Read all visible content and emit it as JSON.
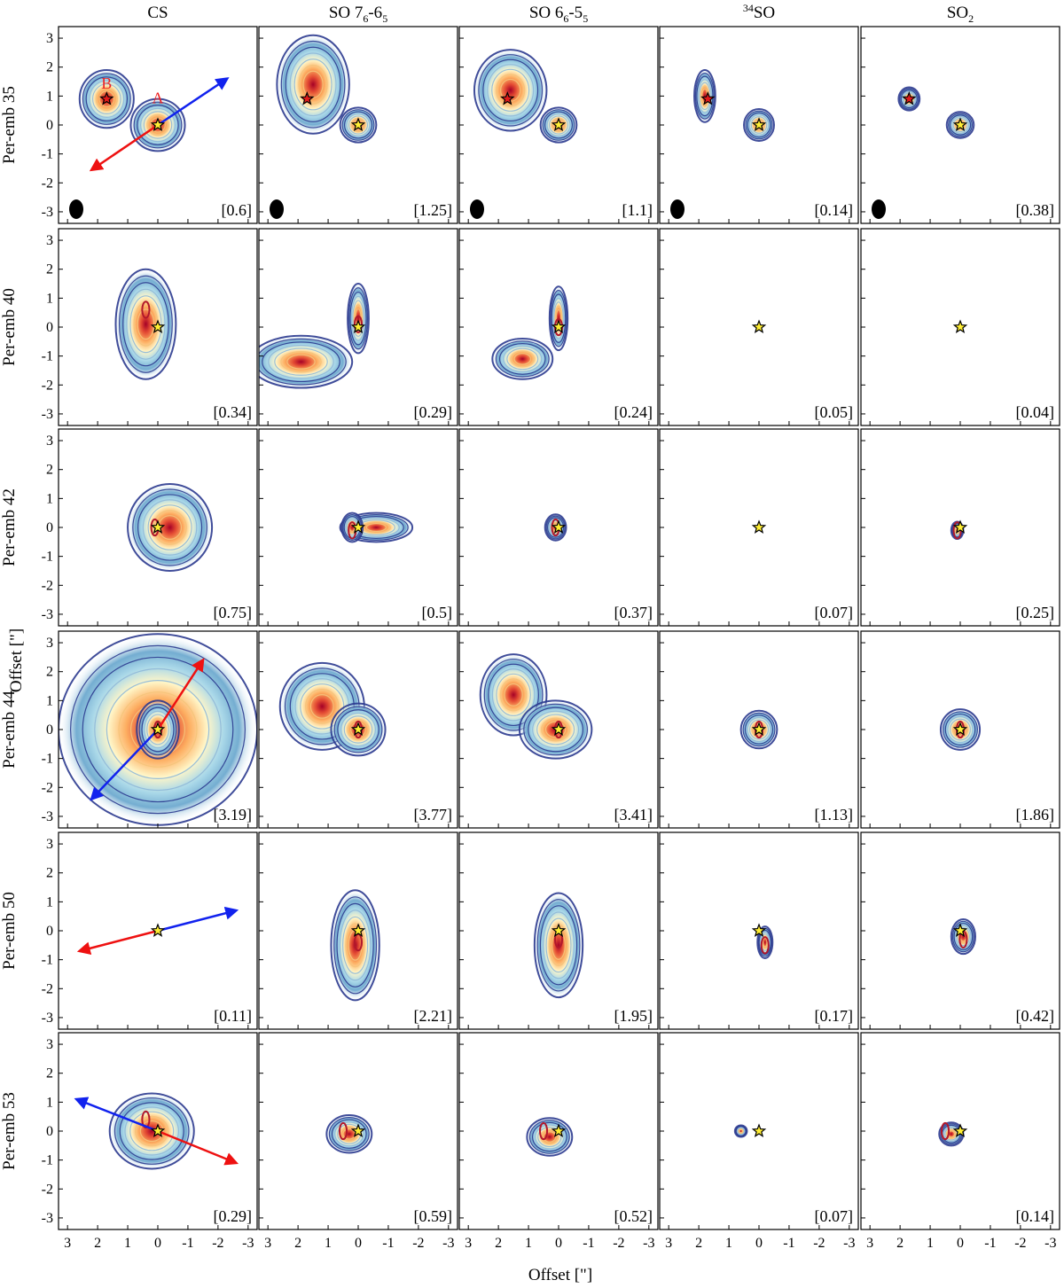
{
  "chart_data": {
    "type": "contour",
    "x_axis_label": "Offset [\"]",
    "y_axis_label": "Offset [\"]",
    "x_ticks": [
      "3",
      "2",
      "1",
      "0",
      "-1",
      "-2",
      "-3"
    ],
    "y_ticks": [
      "3",
      "2",
      "1",
      "0",
      "-1",
      "-2",
      "-3"
    ],
    "xlim": [
      3.3,
      -3.3
    ],
    "ylim": [
      -3.4,
      3.4
    ],
    "columns": [
      {
        "title": "CS"
      },
      {
        "title": "SO 7",
        "sub1": "6",
        "mid": "-6",
        "sub2": "5"
      },
      {
        "title": "SO 6",
        "sub1": "6",
        "mid": "-5",
        "sub2": "5"
      },
      {
        "sup": "34",
        "title": "SO"
      },
      {
        "title": "SO",
        "sub1": "2"
      }
    ],
    "colors": {
      "outer_contour": "#2b3a8f",
      "mid_contour": "#8fb8d8",
      "inner_contour": "#f5c47a",
      "peak_contour": "#b2182b",
      "red_arrow": "#ee1111",
      "blue_arrow": "#1122ee",
      "star_fill": "#ffee33",
      "star_fill_secondary": "#e01b1b",
      "beam": "#000000",
      "label_color": "#ee2222"
    },
    "rows": [
      {
        "label": "Per-emb 35",
        "panels": [
          {
            "peak": "[0.6]",
            "size": "large",
            "star2": [
              1.7,
              0.9
            ],
            "letters": [
              {
                "text": "B",
                "x": 1.7,
                "y": 1.25
              },
              {
                "text": "A",
                "x": 0.0,
                "y": 0.75
              }
            ],
            "arrows": [
              {
                "color": "blue",
                "from": [
                  0,
                  0
                ],
                "to": [
                  -2.3,
                  1.6
                ]
              },
              {
                "color": "red",
                "from": [
                  0,
                  0
                ],
                "to": [
                  2.2,
                  -1.55
                ]
              }
            ],
            "blobs": [
              {
                "x": 1.7,
                "y": 0.9,
                "rx": 0.9,
                "ry": 1.0
              },
              {
                "x": 0.0,
                "y": 0.0,
                "rx": 0.9,
                "ry": 0.9
              }
            ],
            "beam": true
          },
          {
            "peak": "[1.25]",
            "size": "large",
            "star2": [
              1.7,
              0.9
            ],
            "blobs": [
              {
                "x": 1.5,
                "y": 1.4,
                "rx": 1.2,
                "ry": 1.7
              },
              {
                "x": 0.0,
                "y": 0.0,
                "rx": 0.6,
                "ry": 0.6
              }
            ],
            "beam": true
          },
          {
            "peak": "[1.1]",
            "size": "large",
            "star2": [
              1.7,
              0.9
            ],
            "blobs": [
              {
                "x": 1.6,
                "y": 1.2,
                "rx": 1.2,
                "ry": 1.4
              },
              {
                "x": 0.0,
                "y": 0.0,
                "rx": 0.6,
                "ry": 0.6
              }
            ],
            "beam": true
          },
          {
            "peak": "[0.14]",
            "size": "small",
            "star2": [
              1.7,
              0.9
            ],
            "blobs": [
              {
                "x": 1.8,
                "y": 1.0,
                "rx": 0.35,
                "ry": 0.9
              },
              {
                "x": 0.0,
                "y": 0.0,
                "rx": 0.5,
                "ry": 0.55
              }
            ],
            "beam": true
          },
          {
            "peak": "[0.38]",
            "size": "small",
            "star2": [
              1.7,
              0.9
            ],
            "blobs": [
              {
                "x": 1.7,
                "y": 0.9,
                "rx": 0.35,
                "ry": 0.4
              },
              {
                "x": 0.0,
                "y": 0.0,
                "rx": 0.45,
                "ry": 0.45
              }
            ],
            "beam": true
          }
        ]
      },
      {
        "label": "Per-emb 40",
        "panels": [
          {
            "peak": "[0.34]",
            "blobs": [
              {
                "x": 0.4,
                "y": 0.1,
                "rx": 1.0,
                "ry": 1.9
              }
            ],
            "hot": [
              0.4,
              0.6
            ]
          },
          {
            "peak": "[0.29]",
            "blobs": [
              {
                "x": 1.9,
                "y": -1.2,
                "rx": 1.7,
                "ry": 0.9
              },
              {
                "x": 0.0,
                "y": 0.3,
                "rx": 0.35,
                "ry": 1.2
              }
            ],
            "hot": [
              0.0,
              0.1
            ]
          },
          {
            "peak": "[0.24]",
            "blobs": [
              {
                "x": 1.2,
                "y": -1.1,
                "rx": 1.0,
                "ry": 0.7
              },
              {
                "x": 0.0,
                "y": 0.3,
                "rx": 0.3,
                "ry": 1.1
              }
            ],
            "hot": [
              0.0,
              0.0
            ]
          },
          {
            "peak": "[0.05]",
            "blobs": []
          },
          {
            "peak": "[0.04]",
            "blobs": []
          }
        ]
      },
      {
        "label": "Per-emb 42",
        "panels": [
          {
            "peak": "[0.75]",
            "blobs": [
              {
                "x": -0.4,
                "y": 0.0,
                "rx": 1.4,
                "ry": 1.5
              }
            ],
            "hot": [
              0.1,
              0.0
            ]
          },
          {
            "peak": "[0.5]",
            "blobs": [
              {
                "x": -0.6,
                "y": 0.0,
                "rx": 1.2,
                "ry": 0.5
              },
              {
                "x": 0.2,
                "y": 0.0,
                "rx": 0.35,
                "ry": 0.5
              }
            ],
            "hot": [
              0.2,
              -0.1
            ]
          },
          {
            "peak": "[0.37]",
            "blobs": [
              {
                "x": 0.1,
                "y": 0.0,
                "rx": 0.35,
                "ry": 0.45
              }
            ],
            "hot": [
              0.1,
              0.0
            ]
          },
          {
            "peak": "[0.07]",
            "blobs": []
          },
          {
            "peak": "[0.25]",
            "blobs": [
              {
                "x": 0.1,
                "y": -0.1,
                "rx": 0.2,
                "ry": 0.3
              }
            ],
            "hot": [
              0.1,
              -0.1
            ]
          }
        ]
      },
      {
        "label": "Per-emb 44",
        "panels": [
          {
            "peak": "[3.19]",
            "blobs": [
              {
                "x": 0.0,
                "y": 0.0,
                "rx": 3.3,
                "ry": 3.3
              },
              {
                "x": 0.0,
                "y": 0.0,
                "rx": 0.7,
                "ry": 1.0
              }
            ],
            "hot": [
              0.0,
              0.0
            ],
            "arrows": [
              {
                "color": "red",
                "from": [
                  0,
                  0
                ],
                "to": [
                  -1.5,
                  2.4
                ]
              },
              {
                "color": "blue",
                "from": [
                  0,
                  0
                ],
                "to": [
                  2.2,
                  -2.4
                ]
              }
            ]
          },
          {
            "peak": "[3.77]",
            "blobs": [
              {
                "x": 1.2,
                "y": 0.8,
                "rx": 1.4,
                "ry": 1.5
              },
              {
                "x": 0.0,
                "y": 0.0,
                "rx": 0.9,
                "ry": 0.9
              }
            ],
            "hot": [
              0.0,
              0.0
            ]
          },
          {
            "peak": "[3.41]",
            "blobs": [
              {
                "x": 1.5,
                "y": 1.2,
                "rx": 1.1,
                "ry": 1.4
              },
              {
                "x": 0.1,
                "y": 0.0,
                "rx": 1.2,
                "ry": 1.0
              }
            ],
            "hot": [
              0.0,
              0.0
            ]
          },
          {
            "peak": "[1.13]",
            "blobs": [
              {
                "x": 0.0,
                "y": 0.0,
                "rx": 0.6,
                "ry": 0.65
              }
            ],
            "hot": [
              0.0,
              0.0
            ]
          },
          {
            "peak": "[1.86]",
            "blobs": [
              {
                "x": 0.0,
                "y": 0.0,
                "rx": 0.65,
                "ry": 0.7
              }
            ],
            "hot": [
              0.0,
              0.0
            ]
          }
        ]
      },
      {
        "label": "Per-emb 50",
        "panels": [
          {
            "peak": "[0.11]",
            "blobs": [],
            "arrows": [
              {
                "color": "blue",
                "from": [
                  0,
                  0
                ],
                "to": [
                  -2.6,
                  0.7
                ]
              },
              {
                "color": "red",
                "from": [
                  0,
                  0
                ],
                "to": [
                  2.6,
                  -0.7
                ]
              }
            ]
          },
          {
            "peak": "[2.21]",
            "blobs": [
              {
                "x": 0.1,
                "y": -0.5,
                "rx": 0.8,
                "ry": 1.9
              }
            ],
            "hot": [
              0.0,
              -0.4
            ]
          },
          {
            "peak": "[1.95]",
            "blobs": [
              {
                "x": 0.0,
                "y": -0.5,
                "rx": 0.8,
                "ry": 1.8
              }
            ],
            "hot": [
              0.0,
              -0.3
            ]
          },
          {
            "peak": "[0.17]",
            "blobs": [
              {
                "x": -0.2,
                "y": -0.4,
                "rx": 0.25,
                "ry": 0.55
              }
            ],
            "hot": [
              -0.2,
              -0.5
            ]
          },
          {
            "peak": "[0.42]",
            "blobs": [
              {
                "x": -0.1,
                "y": -0.2,
                "rx": 0.4,
                "ry": 0.6
              }
            ],
            "hot": [
              -0.1,
              -0.3
            ]
          }
        ]
      },
      {
        "label": "Per-emb 53",
        "panels": [
          {
            "peak": "[0.29]",
            "blobs": [
              {
                "x": 0.2,
                "y": 0.0,
                "rx": 1.4,
                "ry": 1.3
              }
            ],
            "hot": [
              0.4,
              0.4
            ],
            "arrows": [
              {
                "color": "blue",
                "from": [
                  0,
                  0
                ],
                "to": [
                  2.7,
                  1.1
                ]
              },
              {
                "color": "red",
                "from": [
                  0,
                  0
                ],
                "to": [
                  -2.6,
                  -1.1
                ]
              }
            ]
          },
          {
            "peak": "[0.59]",
            "blobs": [
              {
                "x": 0.3,
                "y": -0.1,
                "rx": 0.75,
                "ry": 0.65
              }
            ],
            "hot": [
              0.5,
              0.0
            ]
          },
          {
            "peak": "[0.52]",
            "blobs": [
              {
                "x": 0.3,
                "y": -0.2,
                "rx": 0.75,
                "ry": 0.65
              }
            ],
            "hot": [
              0.5,
              0.0
            ]
          },
          {
            "peak": "[0.07]",
            "blobs": [
              {
                "x": 0.6,
                "y": 0.0,
                "rx": 0.2,
                "ry": 0.2
              }
            ]
          },
          {
            "peak": "[0.14]",
            "blobs": [
              {
                "x": 0.3,
                "y": -0.1,
                "rx": 0.4,
                "ry": 0.4
              }
            ],
            "hot": [
              0.5,
              0.0
            ]
          }
        ]
      }
    ]
  }
}
